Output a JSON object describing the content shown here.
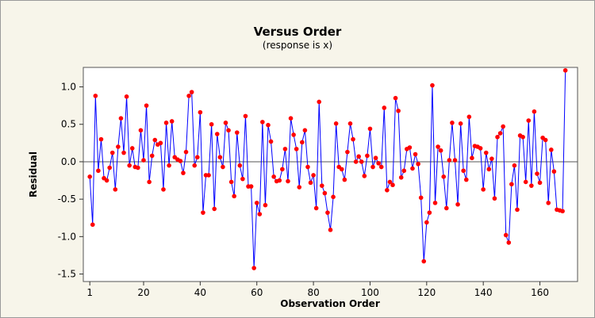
{
  "chart_data": {
    "type": "line",
    "title": "Versus Order",
    "subtitle": "(response is x)",
    "x_label": "Observation Order",
    "y_label": "Residual",
    "x": [
      1,
      2,
      3,
      4,
      5,
      6,
      7,
      8,
      9,
      10,
      11,
      12,
      13,
      14,
      15,
      16,
      17,
      18,
      19,
      20,
      21,
      22,
      23,
      24,
      25,
      26,
      27,
      28,
      29,
      30,
      31,
      32,
      33,
      34,
      35,
      36,
      37,
      38,
      39,
      40,
      41,
      42,
      43,
      44,
      45,
      46,
      47,
      48,
      49,
      50,
      51,
      52,
      53,
      54,
      55,
      56,
      57,
      58,
      59,
      60,
      61,
      62,
      63,
      64,
      65,
      66,
      67,
      68,
      69,
      70,
      71,
      72,
      73,
      74,
      75,
      76,
      77,
      78,
      79,
      80,
      81,
      82,
      83,
      84,
      85,
      86,
      87,
      88,
      89,
      90,
      91,
      92,
      93,
      94,
      95,
      96,
      97,
      98,
      99,
      100,
      101,
      102,
      103,
      104,
      105,
      106,
      107,
      108,
      109,
      110,
      111,
      112,
      113,
      114,
      115,
      116,
      117,
      118,
      119,
      120,
      121,
      122,
      123,
      124,
      125,
      126,
      127,
      128,
      129,
      130,
      131,
      132,
      133,
      134,
      135,
      136,
      137,
      138,
      139,
      140,
      141,
      142,
      143,
      144,
      145,
      146,
      147,
      148,
      149,
      150,
      151,
      152,
      153,
      154,
      155,
      156,
      157,
      158,
      159,
      160,
      161,
      162,
      163,
      164,
      165,
      166,
      167,
      168,
      169
    ],
    "series": [
      {
        "color": "#0000ff",
        "marker_color": "#ff0000",
        "values": [
          -0.2,
          -0.84,
          0.88,
          -0.12,
          0.3,
          -0.22,
          -0.25,
          -0.08,
          0.12,
          -0.37,
          0.2,
          0.58,
          0.12,
          0.87,
          -0.05,
          0.18,
          -0.07,
          -0.08,
          0.42,
          0.02,
          0.75,
          -0.27,
          0.08,
          0.29,
          0.23,
          0.25,
          -0.37,
          0.52,
          -0.05,
          0.54,
          0.06,
          0.03,
          0.01,
          -0.15,
          0.13,
          0.88,
          0.93,
          -0.05,
          0.06,
          0.66,
          -0.68,
          -0.18,
          -0.18,
          0.5,
          -0.63,
          0.37,
          0.06,
          -0.07,
          0.52,
          0.42,
          -0.27,
          -0.46,
          0.39,
          -0.05,
          -0.23,
          0.61,
          -0.33,
          -0.33,
          -1.42,
          -0.55,
          -0.7,
          0.53,
          -0.58,
          0.49,
          0.27,
          -0.2,
          -0.26,
          -0.25,
          -0.1,
          0.17,
          -0.26,
          0.58,
          0.36,
          0.17,
          -0.34,
          0.26,
          0.42,
          -0.07,
          -0.28,
          -0.18,
          -0.62,
          0.8,
          -0.32,
          -0.42,
          -0.68,
          -0.91,
          -0.47,
          0.51,
          -0.07,
          -0.1,
          -0.24,
          0.13,
          0.51,
          0.3,
          0.0,
          0.07,
          0.0,
          -0.19,
          0.08,
          0.44,
          -0.07,
          0.05,
          -0.02,
          -0.07,
          0.72,
          -0.38,
          -0.27,
          -0.31,
          0.85,
          0.68,
          -0.21,
          -0.12,
          0.17,
          0.19,
          -0.09,
          0.1,
          -0.03,
          -0.48,
          -1.33,
          -0.81,
          -0.68,
          1.02,
          -0.55,
          0.2,
          0.15,
          -0.2,
          -0.62,
          0.02,
          0.52,
          0.02,
          -0.57,
          0.51,
          -0.12,
          -0.24,
          0.6,
          0.05,
          0.21,
          0.2,
          0.18,
          -0.37,
          0.12,
          -0.1,
          0.04,
          -0.49,
          0.33,
          0.38,
          0.47,
          -0.98,
          -1.08,
          -0.3,
          -0.05,
          -0.64,
          0.35,
          0.33,
          -0.27,
          0.55,
          -0.32,
          0.67,
          -0.16,
          -0.28,
          0.32,
          0.29,
          -0.55,
          0.16,
          -0.13,
          -0.64,
          -0.65,
          -0.66,
          1.22
        ]
      }
    ],
    "xlim": [
      -1.3,
      173.3
    ],
    "ylim": [
      -1.6,
      1.26
    ],
    "xticks": [
      1,
      20,
      40,
      60,
      80,
      100,
      120,
      140,
      160
    ],
    "yticks": [
      -1.5,
      {
        "value": -1,
        "label": "-1.0"
      },
      -0.5,
      {
        "value": 0,
        "label": "0.0"
      },
      0.5,
      {
        "value": 1,
        "label": "1.0"
      }
    ],
    "reference_line": 0
  }
}
